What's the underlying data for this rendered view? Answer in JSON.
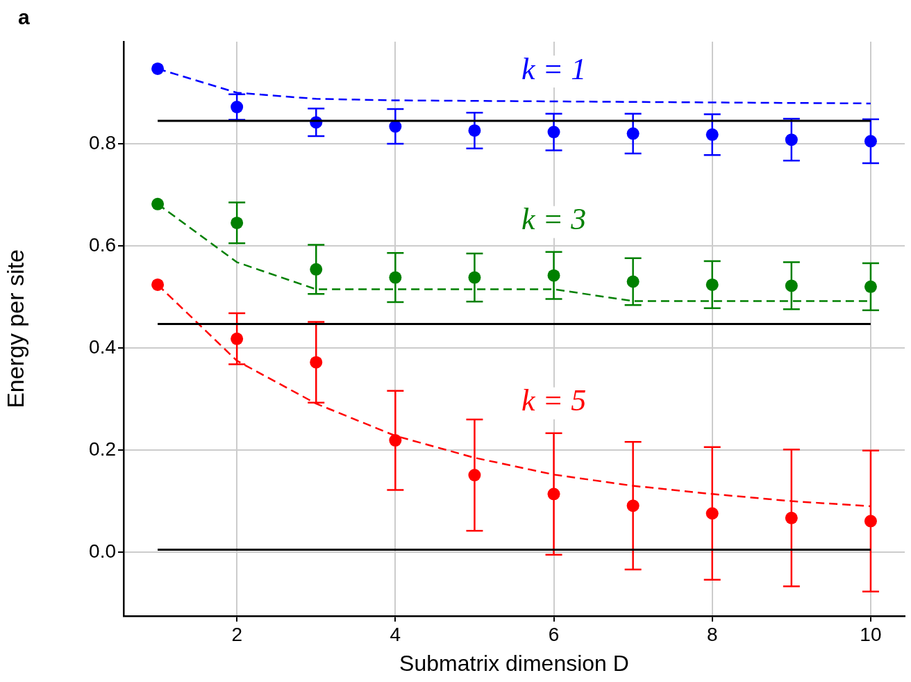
{
  "chart_data": {
    "type": "scatter",
    "xlabel": "Submatrix dimension D",
    "ylabel": "Energy per site",
    "annotations": [
      "a"
    ],
    "xlim": [
      0.57,
      10.43
    ],
    "ylim": [
      -0.125,
      1.0
    ],
    "xticks": [
      2,
      4,
      6,
      8,
      10
    ],
    "yticks": [
      {
        "value": 0,
        "label": "0.0"
      },
      {
        "value": 0.2,
        "label": "0.2"
      },
      {
        "value": 0.4,
        "label": "0.4"
      },
      {
        "value": 0.6,
        "label": "0.6"
      },
      {
        "value": 0.8,
        "label": "0.8"
      }
    ],
    "grid": true,
    "legend": false,
    "series": [
      {
        "type": "line",
        "color": "#000000",
        "x": [
          1,
          10
        ],
        "values": [
          0.845,
          0.845
        ],
        "line_style": "solid",
        "marker": "none"
      },
      {
        "type": "line",
        "color": "#000000",
        "x": [
          1,
          10
        ],
        "values": [
          0.447,
          0.447
        ],
        "line_style": "solid",
        "marker": "none"
      },
      {
        "type": "line",
        "color": "#000000",
        "x": [
          1,
          10
        ],
        "values": [
          0.005,
          0.005
        ],
        "line_style": "solid",
        "marker": "none"
      },
      {
        "type": "line",
        "color": "#0000ff",
        "x": [
          1,
          2,
          3,
          4,
          5,
          6,
          7,
          8,
          9,
          10
        ],
        "values": [
          0.947,
          0.9,
          0.888,
          0.885,
          0.884,
          0.883,
          0.882,
          0.881,
          0.88,
          0.879
        ],
        "line_style": "dashed",
        "marker": "none"
      },
      {
        "type": "line",
        "color": "#008000",
        "x": [
          1,
          2,
          3,
          4,
          5,
          6,
          7,
          8,
          9,
          10
        ],
        "values": [
          0.682,
          0.568,
          0.515,
          0.515,
          0.515,
          0.515,
          0.492,
          0.492,
          0.492,
          0.492
        ],
        "line_style": "dashed",
        "marker": "none"
      },
      {
        "type": "line",
        "color": "#ff0000",
        "x": [
          1,
          2,
          3,
          4,
          5,
          6,
          7,
          8,
          9,
          10
        ],
        "values": [
          0.524,
          0.375,
          0.291,
          0.228,
          0.185,
          0.152,
          0.13,
          0.114,
          0.1,
          0.09
        ],
        "line_style": "dashed",
        "marker": "none"
      },
      {
        "name": "k = 1",
        "color": "#0000ff",
        "x": [
          1,
          2,
          3,
          4,
          5,
          6,
          7,
          8,
          9,
          10
        ],
        "values": [
          0.947,
          0.872,
          0.842,
          0.834,
          0.826,
          0.823,
          0.82,
          0.818,
          0.808,
          0.805
        ],
        "errors": [
          null,
          0.025,
          0.027,
          0.034,
          0.035,
          0.036,
          0.039,
          0.04,
          0.041,
          0.043
        ],
        "marker": "circle"
      },
      {
        "name": "k = 3",
        "color": "#008000",
        "x": [
          1,
          2,
          3,
          4,
          5,
          6,
          7,
          8,
          9,
          10
        ],
        "values": [
          0.682,
          0.645,
          0.554,
          0.538,
          0.538,
          0.542,
          0.53,
          0.524,
          0.522,
          0.52
        ],
        "errors": [
          null,
          0.04,
          0.048,
          0.048,
          0.047,
          0.046,
          0.046,
          0.046,
          0.046,
          0.046
        ],
        "marker": "circle"
      },
      {
        "name": "k = 5",
        "color": "#ff0000",
        "x": [
          1,
          2,
          3,
          4,
          5,
          6,
          7,
          8,
          9,
          10
        ],
        "values": [
          0.524,
          0.418,
          0.372,
          0.219,
          0.151,
          0.114,
          0.091,
          0.076,
          0.067,
          0.061
        ],
        "errors": [
          null,
          0.05,
          0.079,
          0.097,
          0.109,
          0.119,
          0.125,
          0.13,
          0.134,
          0.138
        ],
        "marker": "circle"
      }
    ]
  }
}
